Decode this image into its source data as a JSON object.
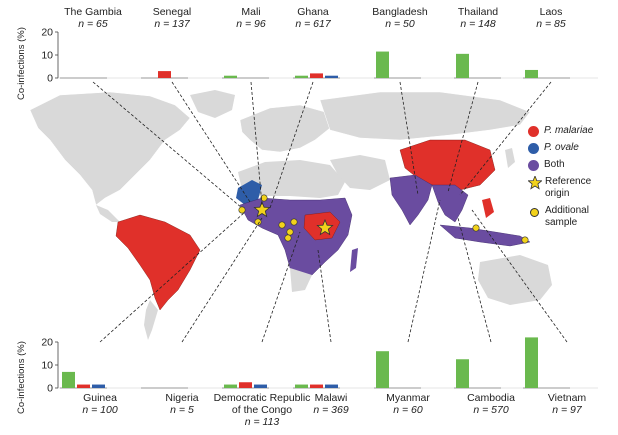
{
  "chart_data": {
    "type": "bar",
    "ylabel": "Co-infections (%)",
    "top_row": {
      "ylim": [
        0,
        20
      ],
      "yticks": [
        "0",
        "10",
        "20"
      ],
      "countries": [
        {
          "name": "The Gambia",
          "n": "n = 65",
          "values": [
            0,
            0,
            0
          ]
        },
        {
          "name": "Senegal",
          "n": "n = 137",
          "values": [
            0,
            3,
            0
          ]
        },
        {
          "name": "Mali",
          "n": "n = 96",
          "values": [
            1,
            0,
            0
          ]
        },
        {
          "name": "Ghana",
          "n": "n = 617",
          "values": [
            1,
            2,
            1
          ]
        },
        {
          "name": "Bangladesh",
          "n": "n = 50",
          "values": [
            11.5,
            0,
            0
          ]
        },
        {
          "name": "Thailand",
          "n": "n = 148",
          "values": [
            10.5,
            0,
            0
          ]
        },
        {
          "name": "Laos",
          "n": "n = 85",
          "values": [
            3.5,
            0,
            0
          ]
        }
      ]
    },
    "bottom_row": {
      "ylim": [
        0,
        20
      ],
      "yticks": [
        "0",
        "10",
        "20"
      ],
      "countries": [
        {
          "name": "Guinea",
          "n": "n = 100",
          "values": [
            7,
            1.5,
            1.5
          ]
        },
        {
          "name": "Nigeria",
          "n": "n = 5",
          "values": [
            0,
            0,
            0
          ]
        },
        {
          "name": "Democratic Republic\nof the Congo",
          "n": "n = 113",
          "values": [
            1.5,
            2.5,
            1.5
          ]
        },
        {
          "name": "Malawi",
          "n": "n = 369",
          "values": [
            1.5,
            1.5,
            1.5
          ]
        },
        {
          "name": "Myanmar",
          "n": "n = 60",
          "values": [
            16,
            0,
            0
          ]
        },
        {
          "name": "Cambodia",
          "n": "n = 570",
          "values": [
            12.5,
            0,
            0
          ]
        },
        {
          "name": "Vietnam",
          "n": "n = 97",
          "values": [
            22,
            0,
            0
          ]
        }
      ]
    },
    "legend": [
      {
        "label": "P. malariae",
        "color": "#e0302a",
        "italic": true
      },
      {
        "label": "P. ovale",
        "color": "#2e5da8",
        "italic": true
      },
      {
        "label": "Both",
        "color": "#6a4ca0",
        "italic": false
      },
      {
        "label": "Reference origin",
        "color": "#f2d21b",
        "italic": false
      },
      {
        "label": "Additional sample",
        "color": "#f2d21b",
        "italic": false
      }
    ]
  }
}
